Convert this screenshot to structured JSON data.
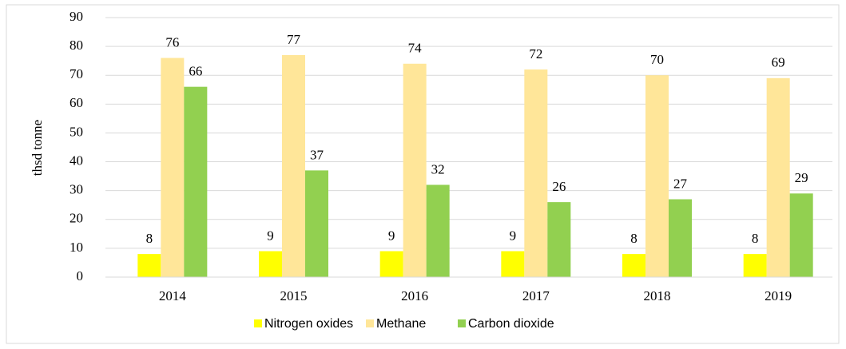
{
  "chart_data": {
    "type": "bar",
    "y_label": "thsd tonne",
    "categories": [
      "2014",
      "2015",
      "2016",
      "2017",
      "2018",
      "2019"
    ],
    "series": [
      {
        "name": "Nitrogen oxides",
        "color": "#ffff00",
        "values": [
          8,
          9,
          9,
          9,
          8,
          8
        ]
      },
      {
        "name": "Methane",
        "color": "#ffe699",
        "values": [
          76,
          77,
          74,
          72,
          70,
          69
        ]
      },
      {
        "name": "Carbon dioxide",
        "color": "#92d050",
        "values": [
          66,
          37,
          32,
          26,
          27,
          29
        ]
      }
    ],
    "ylim": [
      0,
      90
    ],
    "yticks": [
      0,
      10,
      20,
      30,
      40,
      50,
      60,
      70,
      80,
      90
    ],
    "grid": true,
    "legend": "bottom"
  }
}
